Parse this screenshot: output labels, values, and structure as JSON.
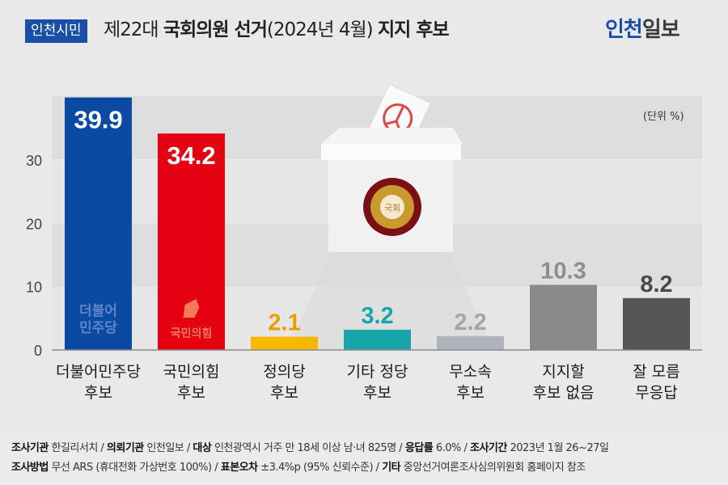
{
  "header": {
    "badge": "인천시민",
    "title_prefix": "제22대 ",
    "title_bold1": "국회의원 선거",
    "title_mid": "(2024년 4월) ",
    "title_bold2": "지지 후보",
    "logo_part1": "인천",
    "logo_part2": "일보"
  },
  "unit_label": "(단위 %)",
  "illustration": {
    "seal_text": "국회"
  },
  "chart_data": {
    "type": "bar",
    "title": "제22대 국회의원 선거(2024년 4월) 지지 후보",
    "ylabel": "",
    "xlabel": "",
    "ylim": [
      0,
      40
    ],
    "yticks": [
      "0",
      "10",
      "20",
      "30"
    ],
    "grid": "alternating horizontal bands",
    "categories": [
      [
        "더불어민주당",
        "후보"
      ],
      [
        "국민의힘",
        "후보"
      ],
      [
        "정의당",
        "후보"
      ],
      [
        "기타 정당",
        "후보"
      ],
      [
        "무소속",
        "후보"
      ],
      [
        "지지할",
        "후보 없음"
      ],
      [
        "잘 모름",
        "무응답"
      ]
    ],
    "values": [
      39.9,
      34.2,
      2.1,
      3.2,
      2.2,
      10.3,
      8.2
    ],
    "value_labels": [
      "39.9",
      "34.2",
      "2.1",
      "3.2",
      "2.2",
      "10.3",
      "8.2"
    ],
    "colors": [
      "#0b4aa2",
      "#e50012",
      "#f6b800",
      "#18a5aa",
      "#aeb4ba",
      "#8a8a8a",
      "#575556"
    ],
    "label_colors": [
      "#ffffff",
      "#ffffff",
      "#f29a00",
      "#18a5aa",
      "#a4a4a4",
      "#8e8e8e",
      "#4a4a4a"
    ],
    "bar_logos": [
      [
        "더불어",
        "민주당"
      ],
      [
        "국민의힘"
      ],
      null,
      null,
      null,
      null,
      null
    ]
  },
  "footer": {
    "line1": [
      {
        "k": "조사기관",
        "v": " 한길리서치 / "
      },
      {
        "k": "의뢰기관",
        "v": " 인천일보 / "
      },
      {
        "k": "대상",
        "v": " 인천광역시 거주 만 18세 이상 남·녀 825명 / "
      },
      {
        "k": "응답률",
        "v": " 6.0% / "
      },
      {
        "k": "조사기간",
        "v": " 2023년 1월 26~27일"
      }
    ],
    "line2": [
      {
        "k": "조사방법",
        "v": " 무선 ARS (휴대전화 가상번호 100%) / "
      },
      {
        "k": "표본오차",
        "v": " ±3.4%p (95% 신뢰수준) / "
      },
      {
        "k": "기타",
        "v": " 중앙선거여론조사심의위원회 홈페이지 참조"
      }
    ]
  }
}
